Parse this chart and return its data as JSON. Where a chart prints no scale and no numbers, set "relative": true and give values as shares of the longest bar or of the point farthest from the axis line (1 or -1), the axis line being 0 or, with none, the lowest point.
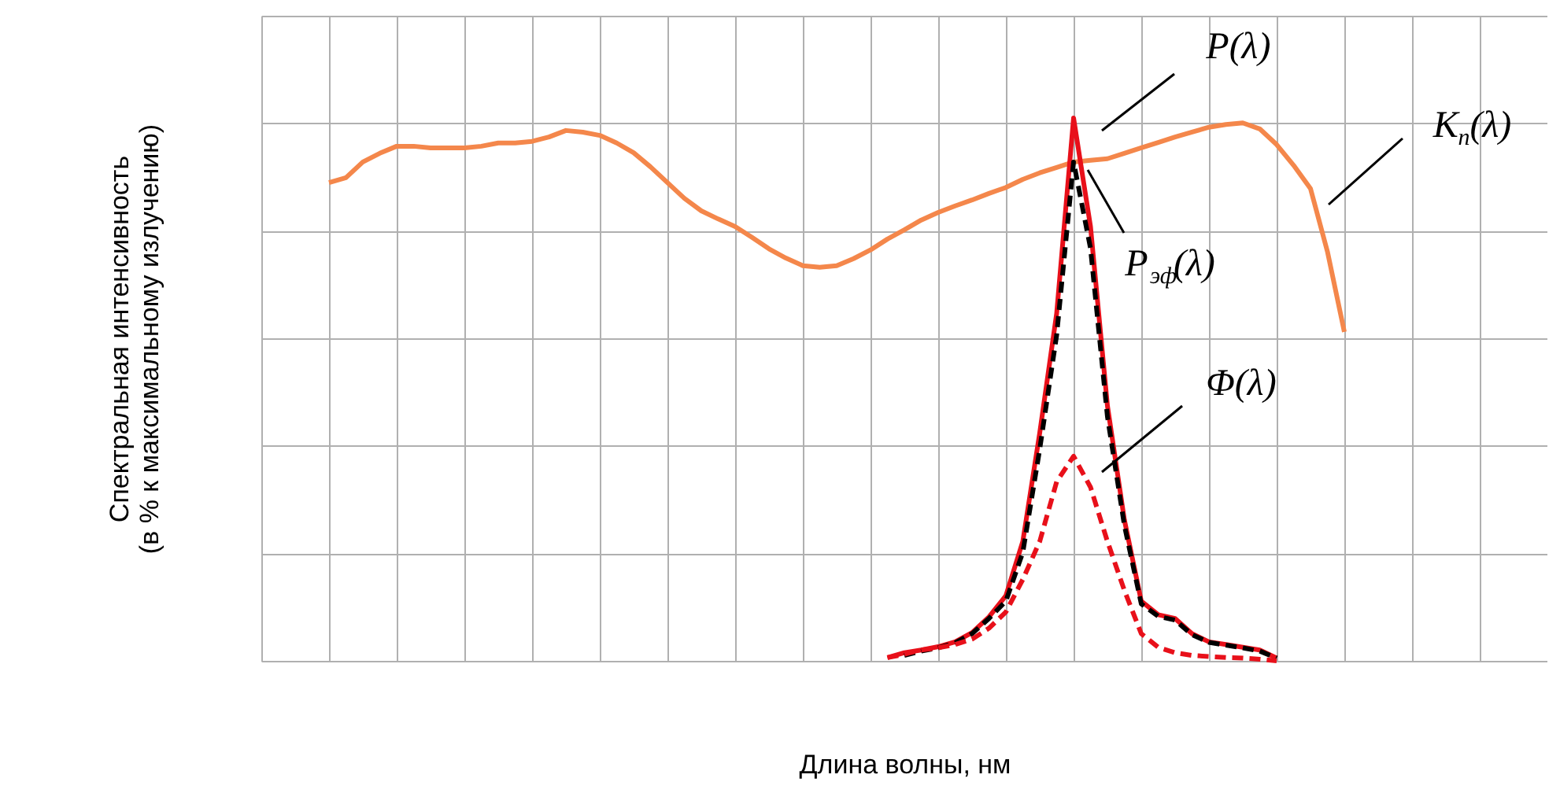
{
  "chart_data": {
    "type": "line",
    "relative": true,
    "grid": true,
    "xlabel": "Длина волны, нм",
    "ylabel": "Спектральная интенсивность\n(в % к максимальному излучению)",
    "categories": [
      null,
      null,
      null,
      null,
      null,
      null,
      null,
      null,
      null,
      null,
      null,
      null,
      null,
      null,
      null,
      null,
      null,
      null,
      null,
      null,
      null,
      null,
      null,
      null,
      null,
      null,
      null,
      null,
      null,
      null,
      null,
      null,
      null,
      null,
      null,
      null,
      null,
      null,
      null,
      null,
      null,
      null,
      null,
      null,
      null,
      null,
      null,
      null,
      null,
      null,
      null,
      null,
      null,
      null,
      null,
      null,
      null,
      null,
      null,
      null,
      null,
      null,
      null,
      null,
      null,
      null,
      null,
      null,
      null,
      null,
      null,
      null,
      null,
      null,
      null,
      null,
      null
    ],
    "series": [
      {
        "name": "K$_{n}$(λ)",
        "color": "#f4874b",
        "line_style": "solid",
        "values": [
          null,
          null,
          null,
          null,
          0.881,
          0.89,
          0.919,
          0.935,
          0.948,
          0.948,
          0.945,
          0.945,
          0.945,
          0.948,
          0.954,
          0.954,
          0.957,
          0.965,
          0.977,
          0.974,
          0.968,
          0.954,
          0.936,
          0.91,
          0.881,
          0.852,
          0.829,
          0.814,
          0.8,
          0.78,
          0.759,
          0.742,
          0.728,
          0.725,
          0.728,
          0.741,
          0.757,
          0.777,
          0.794,
          0.812,
          0.826,
          0.838,
          0.849,
          0.861,
          0.872,
          0.887,
          0.899,
          0.909,
          0.919,
          0.922,
          0.925,
          0.935,
          0.945,
          0.955,
          0.965,
          0.974,
          0.983,
          0.988,
          0.991,
          0.98,
          0.951,
          0.913,
          0.87,
          0.754,
          0.606,
          null,
          null,
          null,
          null,
          null,
          null,
          null,
          null,
          null,
          null,
          null,
          null
        ]
      },
      {
        "name": "P(λ)",
        "color": "#e8101a",
        "line_style": "solid",
        "values": [
          null,
          null,
          null,
          null,
          null,
          null,
          null,
          null,
          null,
          null,
          null,
          null,
          null,
          null,
          null,
          null,
          null,
          null,
          null,
          null,
          null,
          null,
          null,
          null,
          null,
          null,
          null,
          null,
          null,
          null,
          null,
          null,
          null,
          null,
          null,
          null,
          null,
          0.006,
          0.015,
          0.02,
          0.026,
          0.035,
          0.052,
          0.081,
          0.12,
          0.22,
          0.42,
          0.64,
          1.0,
          0.8,
          0.47,
          0.26,
          0.11,
          0.085,
          0.078,
          0.05,
          0.035,
          0.03,
          0.025,
          0.02,
          0.005,
          null,
          null,
          null,
          null,
          null,
          null,
          null,
          null,
          null,
          null,
          null,
          null,
          null,
          null,
          null,
          null
        ]
      },
      {
        "name": "P$_{эф}$(λ)",
        "color": "#000000",
        "line_style": "dashed",
        "values": [
          null,
          null,
          null,
          null,
          null,
          null,
          null,
          null,
          null,
          null,
          null,
          null,
          null,
          null,
          null,
          null,
          null,
          null,
          null,
          null,
          null,
          null,
          null,
          null,
          null,
          null,
          null,
          null,
          null,
          null,
          null,
          null,
          null,
          null,
          null,
          null,
          null,
          null,
          0.01,
          0.018,
          0.024,
          0.033,
          0.05,
          0.078,
          0.11,
          0.2,
          0.39,
          0.6,
          0.919,
          0.76,
          0.45,
          0.25,
          0.105,
          0.082,
          0.075,
          0.048,
          0.034,
          0.029,
          0.024,
          0.018,
          0.005,
          null,
          null,
          null,
          null,
          null,
          null,
          null,
          null,
          null,
          null,
          null,
          null,
          null,
          null,
          null,
          null
        ]
      },
      {
        "name": "Φ(λ)",
        "color": "#e8101a",
        "line_style": "dashed",
        "values": [
          null,
          null,
          null,
          null,
          null,
          null,
          null,
          null,
          null,
          null,
          null,
          null,
          null,
          null,
          null,
          null,
          null,
          null,
          null,
          null,
          null,
          null,
          null,
          null,
          null,
          null,
          null,
          null,
          null,
          null,
          null,
          null,
          null,
          null,
          null,
          null,
          null,
          0.006,
          0.012,
          0.02,
          0.024,
          0.03,
          0.04,
          0.06,
          0.09,
          0.15,
          0.22,
          0.33,
          0.377,
          0.32,
          0.22,
          0.13,
          0.05,
          0.025,
          0.015,
          0.01,
          0.008,
          0.006,
          0.005,
          0.003,
          0.0,
          null,
          null,
          null,
          null,
          null,
          null,
          null,
          null,
          null,
          null,
          null,
          null,
          null,
          null,
          null,
          null
        ]
      }
    ]
  }
}
